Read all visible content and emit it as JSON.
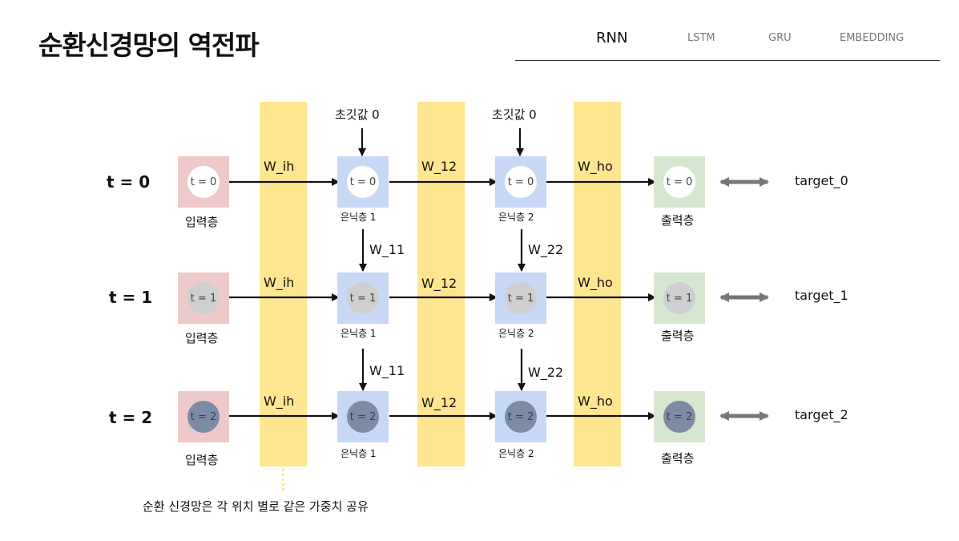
{
  "title": "순환신경망의 역전파",
  "nav": [
    "RNN",
    "LSTM",
    "GRU",
    "EMBEDDING"
  ],
  "rows": [
    {
      "t_label": "t = 0",
      "circle": "t = 0",
      "target": "target_0"
    },
    {
      "t_label": "t = 1",
      "circle": "t = 1",
      "target": "target_1"
    },
    {
      "t_label": "t = 2",
      "circle": "t = 2",
      "target": "target_2"
    }
  ],
  "captions": {
    "input": "입력층",
    "hidden1": "은닉층 1",
    "hidden2": "은닉층 2",
    "output": "출력층"
  },
  "weights": {
    "ih": "W_ih",
    "h12": "W_12",
    "ho": "W_ho",
    "h11": "W_11",
    "h22": "W_22"
  },
  "initial": "초깃값 0",
  "footer": "순환 신경망은 각 위치 별로 같은 가중치 공유",
  "colors": {
    "input_box": "#eec9c9",
    "hidden_box": "#c7d8f4",
    "output_box": "#d6e7cf",
    "band": "#fde68f"
  }
}
